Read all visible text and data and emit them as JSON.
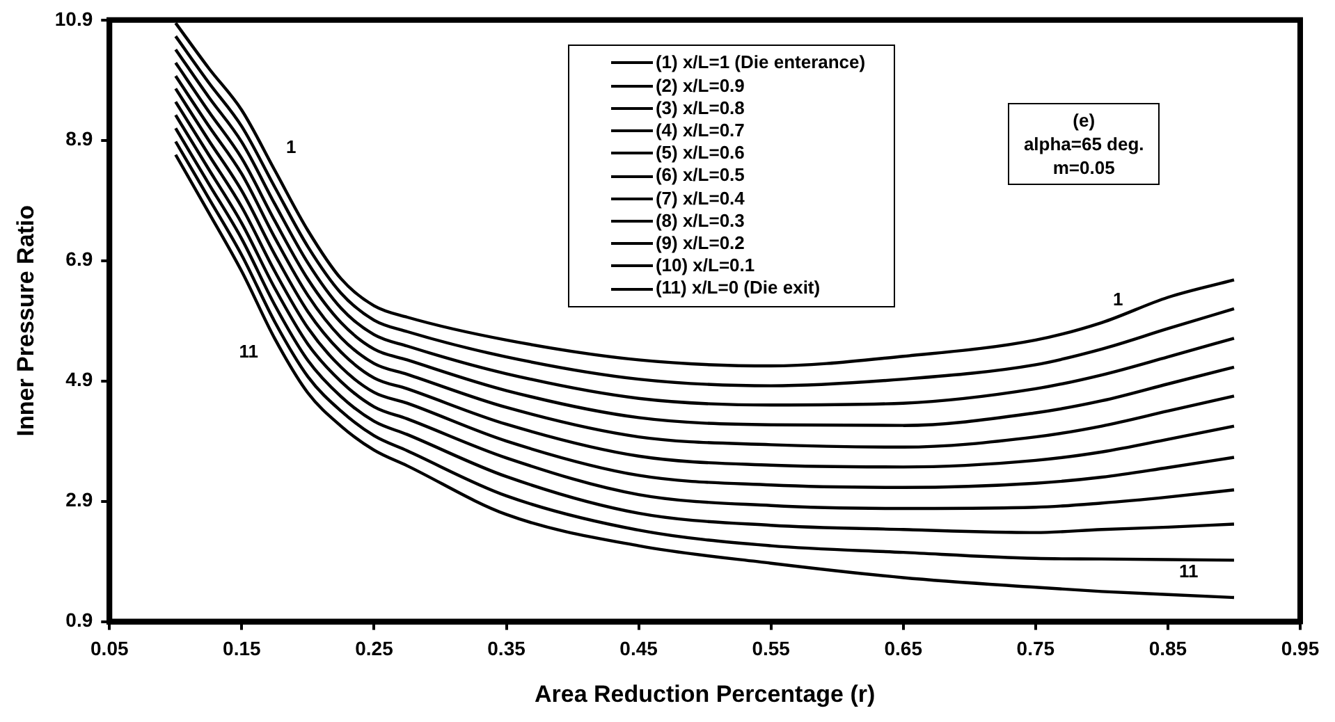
{
  "chart_data": {
    "type": "line",
    "xlabel": "Area Reduction Percentage (r)",
    "ylabel": "Inner Pressure Ratio",
    "x": [
      0.1,
      0.125,
      0.15,
      0.175,
      0.2,
      0.225,
      0.25,
      0.275,
      0.35,
      0.45,
      0.55,
      0.65,
      0.75,
      0.8,
      0.85,
      0.9
    ],
    "xlim": [
      0.05,
      0.95
    ],
    "xticks": [
      0.05,
      0.15,
      0.25,
      0.35,
      0.45,
      0.55,
      0.65,
      0.75,
      0.85,
      0.95
    ],
    "ylim": [
      0.9,
      10.9
    ],
    "yticks": [
      0.9,
      2.9,
      4.9,
      6.9,
      8.9,
      10.9
    ],
    "legend": "top",
    "marker": "none",
    "line_style": "solid",
    "grid": false,
    "series": [
      {
        "name": "(1) x/L=1 (Die enterance)",
        "color": "#000000",
        "values": [
          10.85,
          10.1,
          9.4,
          8.4,
          7.4,
          6.6,
          6.15,
          5.96,
          5.58,
          5.25,
          5.15,
          5.31,
          5.58,
          5.87,
          6.29,
          6.58
        ]
      },
      {
        "name": "(2) x/L=0.9",
        "color": "#000000",
        "values": [
          10.63,
          9.86,
          9.13,
          8.12,
          7.13,
          6.36,
          5.91,
          5.72,
          5.3,
          4.93,
          4.82,
          4.93,
          5.17,
          5.43,
          5.77,
          6.1
        ]
      },
      {
        "name": "(3) x/L=0.8",
        "color": "#000000",
        "values": [
          10.41,
          9.62,
          8.87,
          7.84,
          6.86,
          6.11,
          5.67,
          5.48,
          5.02,
          4.61,
          4.5,
          4.53,
          4.77,
          5.0,
          5.3,
          5.61
        ]
      },
      {
        "name": "(4) x/L=0.7",
        "color": "#000000",
        "values": [
          10.19,
          9.38,
          8.6,
          7.56,
          6.59,
          5.87,
          5.43,
          5.25,
          4.74,
          4.29,
          4.17,
          4.16,
          4.37,
          4.57,
          4.85,
          5.13
        ]
      },
      {
        "name": "(5) x/L=0.6",
        "color": "#000000",
        "values": [
          9.97,
          9.14,
          8.34,
          7.28,
          6.32,
          5.62,
          5.19,
          5.01,
          4.46,
          3.97,
          3.84,
          3.8,
          3.97,
          4.15,
          4.4,
          4.65
        ]
      },
      {
        "name": "(6) x/L=0.5",
        "color": "#000000",
        "values": [
          9.76,
          8.9,
          8.06,
          7.0,
          6.05,
          5.38,
          4.95,
          4.77,
          4.18,
          3.65,
          3.5,
          3.47,
          3.58,
          3.72,
          3.93,
          4.15
        ]
      },
      {
        "name": "(7) x/L=0.4",
        "color": "#000000",
        "values": [
          9.54,
          8.66,
          7.79,
          6.72,
          5.78,
          5.13,
          4.71,
          4.53,
          3.9,
          3.33,
          3.17,
          3.13,
          3.2,
          3.3,
          3.46,
          3.63
        ]
      },
      {
        "name": "(8) x/L=0.3",
        "color": "#000000",
        "values": [
          9.32,
          8.42,
          7.52,
          6.44,
          5.51,
          4.89,
          4.47,
          4.27,
          3.62,
          3.01,
          2.83,
          2.78,
          2.8,
          2.87,
          2.97,
          3.09
        ]
      },
      {
        "name": "(9) x/L=0.2",
        "color": "#000000",
        "values": [
          9.1,
          8.18,
          7.26,
          6.16,
          5.24,
          4.64,
          4.23,
          4.01,
          3.31,
          2.7,
          2.5,
          2.43,
          2.38,
          2.43,
          2.47,
          2.52
        ]
      },
      {
        "name": "(10) x/L=0.1",
        "color": "#000000",
        "values": [
          8.88,
          7.94,
          6.99,
          5.88,
          4.97,
          4.4,
          3.99,
          3.74,
          2.99,
          2.42,
          2.16,
          2.05,
          1.95,
          1.94,
          1.93,
          1.92
        ]
      },
      {
        "name": "(11) x/L=0 (Die exit)",
        "color": "#000000",
        "values": [
          8.66,
          7.7,
          6.72,
          5.6,
          4.7,
          4.15,
          3.75,
          3.49,
          2.68,
          2.16,
          1.87,
          1.63,
          1.47,
          1.4,
          1.35,
          1.3
        ]
      }
    ],
    "annotations": [
      {
        "text": "1",
        "x": 0.175,
        "y": 8.4
      },
      {
        "text": "11",
        "x": 0.175,
        "y": 5.6
      },
      {
        "text": "1",
        "x": 0.8,
        "y": 5.87
      },
      {
        "text": "11",
        "x": 0.85,
        "y": 1.35
      },
      "(e)",
      "alpha=65 deg.",
      "m=0.05"
    ]
  }
}
